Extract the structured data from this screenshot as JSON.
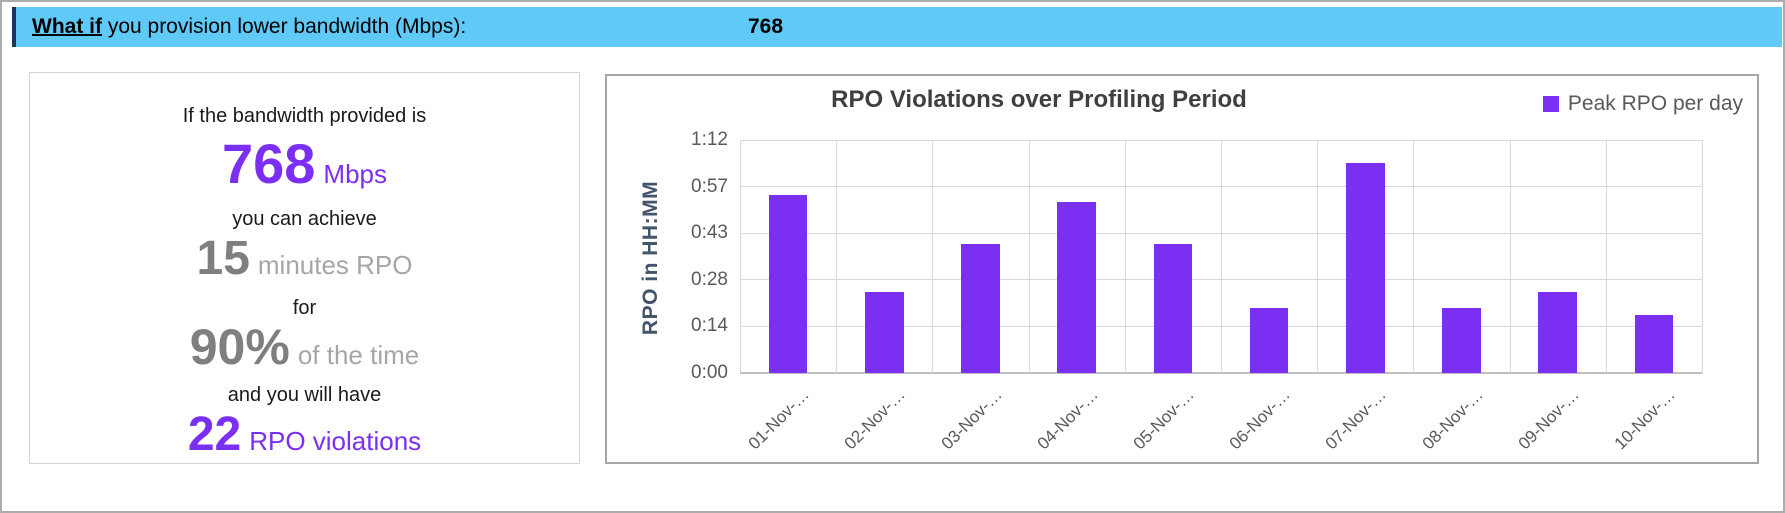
{
  "header": {
    "keyword": "What if",
    "question": " you provision lower bandwidth (Mbps):",
    "value": "768"
  },
  "summary_panel": {
    "intro": "If the bandwidth provided is",
    "bandwidth_value": "768",
    "bandwidth_unit": "Mbps",
    "achieve_text": "you can achieve",
    "rpo_value": "15",
    "rpo_unit": "minutes RPO",
    "for_text": "for",
    "percent_value": "90%",
    "percent_unit": "of the time",
    "have_text": "and you will have",
    "violations_value": "22",
    "violations_unit": "RPO violations"
  },
  "chart_data": {
    "type": "bar",
    "title": "RPO Violations over Profiling Period",
    "ylabel": "RPO in HH:MM",
    "xlabel": "",
    "legend_label": "Peak RPO per day",
    "legend_position": "top-right",
    "grid": true,
    "categories": [
      "01-Nov-…",
      "02-Nov-…",
      "03-Nov-…",
      "04-Nov-…",
      "05-Nov-…",
      "06-Nov-…",
      "07-Nov-…",
      "08-Nov-…",
      "09-Nov-…",
      "10-Nov-…"
    ],
    "values_minutes": [
      55,
      25,
      40,
      53,
      40,
      20,
      65,
      20,
      25,
      18
    ],
    "values_hhmm": [
      "0:55",
      "0:25",
      "0:40",
      "0:53",
      "0:40",
      "0:20",
      "1:05",
      "0:20",
      "0:25",
      "0:18"
    ],
    "y_ticks": [
      "0:00",
      "0:14",
      "0:28",
      "0:43",
      "0:57",
      "1:12"
    ],
    "y_tick_minutes": [
      0,
      14.4,
      28.8,
      43.2,
      57.6,
      72
    ],
    "ylim_minutes": [
      0,
      72
    ]
  },
  "colors": {
    "accent_purple": "#7B2FF2",
    "topbar_blue": "#5FC9F8",
    "topbar_edge_navy": "#17375E",
    "big_number_gray": "#7F7F7F",
    "unit_text_gray": "#A6A6A6",
    "axis_text_gray": "#595959",
    "y_axis_title_blue": "#44546A",
    "gridline_gray": "#D9D9D9"
  }
}
